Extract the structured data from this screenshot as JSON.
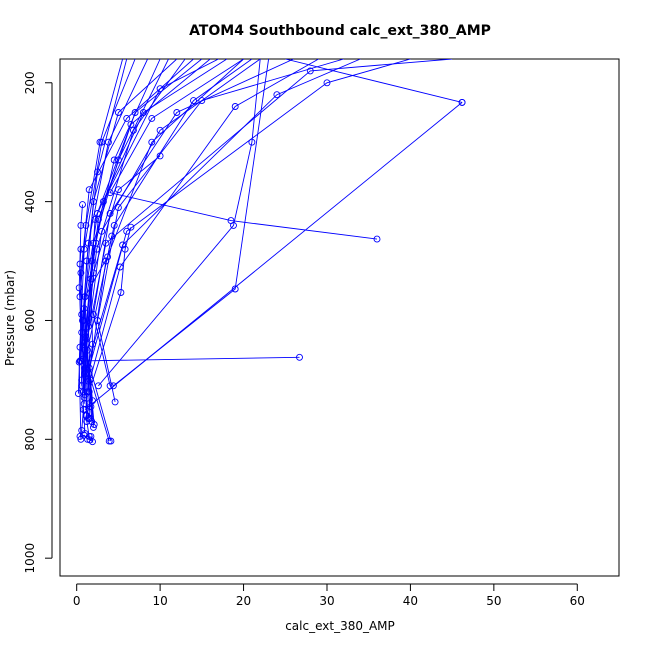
{
  "chart_data": {
    "type": "line",
    "title": "ATOM4 Southbound calc_ext_380_AMP",
    "xlabel": "calc_ext_380_AMP",
    "ylabel": "Pressure (mbar)",
    "xlim": [
      -2,
      65
    ],
    "ylim": [
      1030,
      160
    ],
    "y_reversed": true,
    "x_ticks": [
      0,
      10,
      20,
      30,
      40,
      50,
      60
    ],
    "y_ticks": [
      200,
      400,
      600,
      800,
      1000
    ],
    "grid": false,
    "legend": "none",
    "series_color": "#0000ff",
    "marker": "open-circle",
    "series": [
      {
        "points": [
          [
            1.2,
            760
          ],
          [
            0.8,
            600
          ],
          [
            2.0,
            400
          ],
          [
            5.0,
            250
          ],
          [
            12,
            160
          ]
        ]
      },
      {
        "points": [
          [
            1.5,
            740
          ],
          [
            1.0,
            560
          ],
          [
            2.5,
            420
          ],
          [
            8,
            250
          ],
          [
            18,
            160
          ]
        ]
      },
      {
        "points": [
          [
            0.8,
            720
          ],
          [
            0.5,
            520
          ],
          [
            1.5,
            380
          ],
          [
            6,
            260
          ],
          [
            14,
            160
          ]
        ]
      },
      {
        "points": [
          [
            2.0,
            780
          ],
          [
            1.2,
            640
          ],
          [
            3.0,
            450
          ],
          [
            10,
            280
          ],
          [
            22,
            160
          ]
        ]
      },
      {
        "points": [
          [
            1.0,
            790
          ],
          [
            0.6,
            700
          ],
          [
            1.8,
            500
          ],
          [
            4.5,
            330
          ],
          [
            10,
            160
          ]
        ]
      },
      {
        "points": [
          [
            0.5,
            800
          ],
          [
            0.3,
            670
          ],
          [
            0.9,
            480
          ],
          [
            3.0,
            300
          ],
          [
            7,
            160
          ]
        ]
      },
      {
        "points": [
          [
            1.8,
            770
          ],
          [
            1.4,
            610
          ],
          [
            2.2,
            430
          ],
          [
            6.5,
            270
          ],
          [
            16,
            160
          ]
        ]
      },
      {
        "points": [
          [
            4.1,
            803
          ],
          [
            1.0,
            650
          ],
          [
            2.0,
            470
          ],
          [
            5.0,
            330
          ],
          [
            11,
            160
          ]
        ]
      },
      {
        "points": [
          [
            3.9,
            803
          ],
          [
            1.5,
            690
          ],
          [
            3.5,
            500
          ],
          [
            9,
            300
          ],
          [
            20,
            160
          ]
        ]
      },
      {
        "points": [
          [
            26.7,
            662
          ],
          [
            0.5,
            668
          ],
          [
            1.2,
            500
          ],
          [
            2.5,
            350
          ],
          [
            6,
            160
          ]
        ]
      },
      {
        "points": [
          [
            4.0,
            710
          ],
          [
            2.0,
            590
          ],
          [
            4.0,
            420
          ],
          [
            12,
            250
          ],
          [
            26,
            160
          ]
        ]
      },
      {
        "points": [
          [
            4.6,
            737
          ],
          [
            2.5,
            600
          ],
          [
            5.0,
            410
          ],
          [
            15,
            230
          ],
          [
            32,
            160
          ]
        ]
      },
      {
        "points": [
          [
            36.0,
            463
          ],
          [
            18.5,
            432
          ],
          [
            4.0,
            385
          ],
          [
            9,
            260
          ],
          [
            20,
            160
          ]
        ]
      },
      {
        "points": [
          [
            2.6,
            710
          ],
          [
            18.8,
            440
          ],
          [
            21,
            300
          ],
          [
            22,
            160
          ]
        ]
      },
      {
        "points": [
          [
            4.4,
            710
          ],
          [
            19.0,
            547
          ],
          [
            23,
            160
          ]
        ]
      },
      {
        "points": [
          [
            46.2,
            233
          ],
          [
            25,
            160
          ]
        ]
      },
      {
        "points": [
          [
            1.0,
            750
          ],
          [
            46.2,
            233
          ]
        ]
      },
      {
        "points": [
          [
            10.0,
            323
          ],
          [
            5.0,
            380
          ],
          [
            2.0,
            520
          ],
          [
            1.0,
            680
          ]
        ]
      },
      {
        "points": [
          [
            6.5,
            443
          ],
          [
            5.8,
            480
          ],
          [
            5.3,
            553
          ],
          [
            1.5,
            720
          ]
        ]
      },
      {
        "points": [
          [
            4.2,
            458
          ],
          [
            3.7,
            493
          ],
          [
            1.0,
            560
          ],
          [
            0.9,
            740
          ]
        ]
      },
      {
        "points": [
          [
            0.5,
            480
          ],
          [
            0.4,
            505
          ],
          [
            0.6,
            590
          ],
          [
            0.4,
            645
          ],
          [
            0.2,
            723
          ]
        ]
      },
      {
        "points": [
          [
            0.7,
            405
          ],
          [
            0.5,
            440
          ],
          [
            0.3,
            545
          ],
          [
            0.6,
            620
          ],
          [
            0.4,
            668
          ]
        ]
      },
      {
        "points": [
          [
            2.3,
            470
          ],
          [
            1.7,
            530
          ],
          [
            1.9,
            640
          ],
          [
            1.4,
            702
          ],
          [
            1.6,
            765
          ]
        ]
      },
      {
        "points": [
          [
            1.1,
            760
          ],
          [
            1.5,
            795
          ],
          [
            1.6,
            801
          ],
          [
            1.9,
            804
          ],
          [
            1.7,
            795
          ]
        ]
      },
      {
        "points": [
          [
            0.8,
            750
          ],
          [
            0.6,
            785
          ],
          [
            0.4,
            795
          ],
          [
            0.9,
            793
          ],
          [
            1.3,
            800
          ]
        ]
      },
      {
        "points": [
          [
            1.2,
            770
          ],
          [
            1.0,
            620
          ],
          [
            2.6,
            430
          ],
          [
            7,
            250
          ],
          [
            15,
            160
          ]
        ]
      },
      {
        "points": [
          [
            0.9,
            730
          ],
          [
            0.7,
            600
          ],
          [
            1.4,
            470
          ],
          [
            3.8,
            300
          ],
          [
            8.5,
            160
          ]
        ]
      },
      {
        "points": [
          [
            1.6,
            755
          ],
          [
            1.1,
            630
          ],
          [
            2.4,
            480
          ],
          [
            6.8,
            280
          ],
          [
            13,
            160
          ]
        ]
      },
      {
        "points": [
          [
            1.3,
            720
          ],
          [
            0.9,
            580
          ],
          [
            3.2,
            400
          ],
          [
            10,
            210
          ],
          [
            17,
            160
          ]
        ]
      },
      {
        "points": [
          [
            1.7,
            745
          ],
          [
            1.3,
            650
          ],
          [
            4.5,
            440
          ],
          [
            14,
            230
          ],
          [
            21,
            160
          ]
        ]
      },
      {
        "points": [
          [
            0.6,
            710
          ],
          [
            0.4,
            560
          ],
          [
            1.1,
            440
          ],
          [
            2.8,
            300
          ],
          [
            5.5,
            160
          ]
        ]
      },
      {
        "points": [
          [
            2.1,
            775
          ],
          [
            1.6,
            700
          ],
          [
            5.2,
            510
          ],
          [
            19,
            240
          ],
          [
            29,
            160
          ]
        ]
      },
      {
        "points": [
          [
            1.4,
            765
          ],
          [
            1.0,
            690
          ],
          [
            5.5,
            473
          ],
          [
            24,
            220
          ],
          [
            34,
            160
          ]
        ]
      },
      {
        "points": [
          [
            1.9,
            735
          ],
          [
            1.5,
            680
          ],
          [
            6.0,
            450
          ],
          [
            30,
            200
          ],
          [
            40,
            160
          ]
        ]
      },
      {
        "points": [
          [
            1.0,
            725
          ],
          [
            0.8,
            665
          ],
          [
            3.5,
            470
          ],
          [
            28,
            180
          ],
          [
            45,
            160
          ]
        ]
      }
    ]
  }
}
